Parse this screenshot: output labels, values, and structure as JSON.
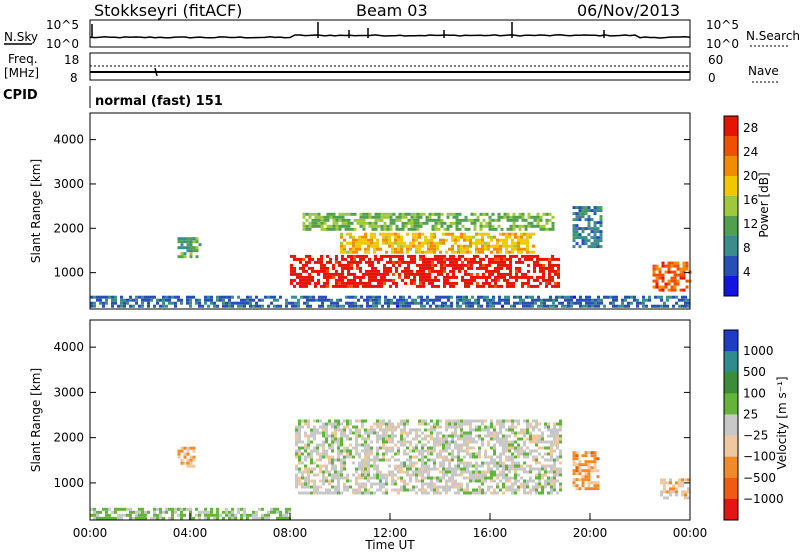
{
  "header": {
    "station": "Stokkseyri (fitACF)",
    "beam": "Beam 03",
    "date": "06/Nov/2013"
  },
  "top_panels": {
    "nsky_label": "N.Sky",
    "nsky_ticks": [
      "10^5",
      "10^0"
    ],
    "nsearch_label": "N.Search",
    "nsearch_ticks": [
      "10^5",
      "10^0"
    ],
    "freq_label_line1": "Freq.",
    "freq_label_line2": "[MHz]",
    "freq_ticks": [
      "18",
      "8"
    ],
    "nave_label": "Nave",
    "nave_ticks": [
      "60",
      "0"
    ],
    "cpid_label": "CPID",
    "cpid_text": "normal (fast) 151"
  },
  "chart_data": [
    {
      "type": "heatmap",
      "title": "",
      "xlabel": "Time UT",
      "ylabel": "Slant Range [km]",
      "xlim": [
        0,
        24
      ],
      "ylim": [
        180,
        4600
      ],
      "x_ticks": [
        "00:00",
        "04:00",
        "08:00",
        "12:00",
        "16:00",
        "20:00",
        "00:00"
      ],
      "y_ticks": [
        1000,
        2000,
        3000,
        4000
      ],
      "colorbar": {
        "label": "Power [dB]",
        "ticks": [
          "4",
          "8",
          "12",
          "16",
          "20",
          "24",
          "28"
        ],
        "range": [
          0,
          30
        ],
        "colors": [
          "#1414e0",
          "#2850b4",
          "#3c8c8c",
          "#50a050",
          "#a0c83c",
          "#f0c800",
          "#f08c00",
          "#f05000",
          "#e61400"
        ]
      },
      "regions": [
        {
          "t": [
            8.0,
            18.7
          ],
          "r": [
            700,
            1400
          ],
          "value": 29
        },
        {
          "t": [
            10.0,
            17.7
          ],
          "r": [
            1450,
            1900
          ],
          "value": 19
        },
        {
          "t": [
            8.5,
            18.5
          ],
          "r": [
            2000,
            2350
          ],
          "value": 13
        },
        {
          "t": [
            3.5,
            4.4
          ],
          "r": [
            1350,
            1800
          ],
          "value": 11
        },
        {
          "t": [
            19.3,
            20.5
          ],
          "r": [
            1600,
            2500
          ],
          "value": 8
        },
        {
          "t": [
            22.5,
            24.0
          ],
          "r": [
            600,
            1250
          ],
          "value": 25
        },
        {
          "t": [
            0.0,
            24.0
          ],
          "r": [
            220,
            480
          ],
          "value": 6
        }
      ]
    },
    {
      "type": "heatmap",
      "title": "",
      "xlabel": "Time UT",
      "ylabel": "Slant Range [km]",
      "xlim": [
        0,
        24
      ],
      "ylim": [
        180,
        4600
      ],
      "x_ticks": [
        "00:00",
        "04:00",
        "08:00",
        "12:00",
        "16:00",
        "20:00",
        "00:00"
      ],
      "y_ticks": [
        1000,
        2000,
        3000,
        4000
      ],
      "colorbar": {
        "label": "Velocity [m s⁻¹]",
        "ticks": [
          "1000",
          "500",
          "100",
          "25",
          "−25",
          "−100",
          "−500",
          "−1000"
        ],
        "range": [
          -1000,
          1000
        ],
        "colors": [
          "#1e3cc8",
          "#2f8c8c",
          "#3c8c3c",
          "#64b43c",
          "#c8c8c8",
          "#f0c8a0",
          "#f08c28",
          "#f05a14",
          "#e61414"
        ]
      },
      "regions": [
        {
          "t": [
            8.2,
            18.8
          ],
          "r": [
            800,
            2400
          ],
          "value": 0
        },
        {
          "t": [
            3.5,
            4.2
          ],
          "r": [
            1400,
            1800
          ],
          "value": -300
        },
        {
          "t": [
            19.3,
            20.3
          ],
          "r": [
            900,
            1700
          ],
          "value": -400
        },
        {
          "t": [
            22.8,
            24.0
          ],
          "r": [
            700,
            1100
          ],
          "value": -200
        },
        {
          "t": [
            0.0,
            8.0
          ],
          "r": [
            220,
            450
          ],
          "value": 150
        }
      ]
    }
  ]
}
